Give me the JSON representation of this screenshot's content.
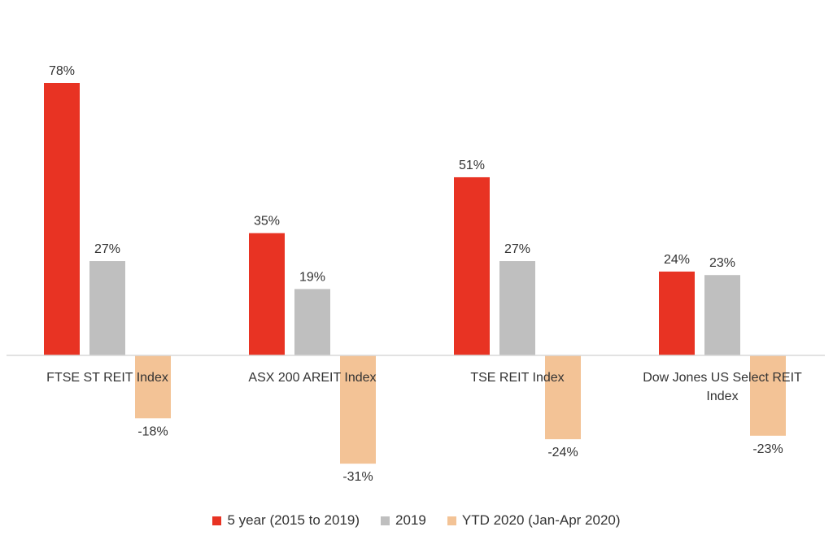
{
  "chart_data": {
    "type": "bar",
    "categories": [
      [
        "FTSE ST REIT Index"
      ],
      [
        "ASX 200 AREIT Index"
      ],
      [
        "TSE REIT Index"
      ],
      [
        "Dow Jones US Select REIT",
        "Index"
      ]
    ],
    "series": [
      {
        "name": "5 year (2015 to 2019)",
        "color": "#e83323",
        "values": [
          78,
          35,
          51,
          24
        ],
        "labels": [
          "78%",
          "35%",
          "51%",
          "24%"
        ]
      },
      {
        "name": "2019",
        "color": "#bfbfbf",
        "values": [
          27,
          19,
          27,
          23
        ],
        "labels": [
          "27%",
          "19%",
          "27%",
          "23%"
        ]
      },
      {
        "name": "YTD 2020 (Jan-Apr 2020)",
        "color": "#f3c396",
        "values": [
          -18,
          -31,
          -24,
          -23
        ],
        "labels": [
          "-18%",
          "-31%",
          "-24%",
          "-23%"
        ]
      }
    ],
    "title": "",
    "xlabel": "",
    "ylabel": "",
    "ylim": [
      -31,
      78
    ],
    "grid": false,
    "legend_position": "bottom",
    "axis_color": "#d9d9d9",
    "label_color": "#333333"
  }
}
